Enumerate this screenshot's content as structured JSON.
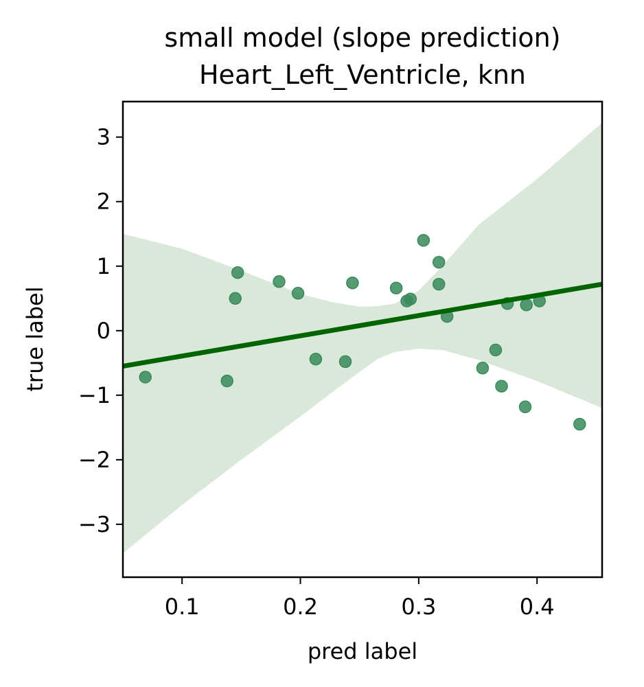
{
  "chart_data": {
    "type": "scatter",
    "title_line1": "small model (slope prediction)",
    "title_line2": "Heart_Left_Ventricle, knn",
    "xlabel": "pred label",
    "ylabel": "true label",
    "xlim": [
      0.05,
      0.455
    ],
    "ylim": [
      -3.82,
      3.55
    ],
    "xticks": [
      0.1,
      0.2,
      0.3,
      0.4
    ],
    "xtick_labels": [
      "0.1",
      "0.2",
      "0.3",
      "0.4"
    ],
    "yticks": [
      -3,
      -2,
      -1,
      0,
      1,
      2,
      3
    ],
    "ytick_labels": [
      "−3",
      "−2",
      "−1",
      "0",
      "1",
      "2",
      "3"
    ],
    "grid": false,
    "point_color": "#3a8a5a",
    "line_color": "#006400",
    "band_color": "#d9e8d9",
    "points": [
      {
        "x": 0.069,
        "y": -0.72
      },
      {
        "x": 0.138,
        "y": -0.78
      },
      {
        "x": 0.145,
        "y": 0.5
      },
      {
        "x": 0.147,
        "y": 0.9
      },
      {
        "x": 0.182,
        "y": 0.76
      },
      {
        "x": 0.198,
        "y": 0.58
      },
      {
        "x": 0.213,
        "y": -0.44
      },
      {
        "x": 0.238,
        "y": -0.48
      },
      {
        "x": 0.244,
        "y": 0.74
      },
      {
        "x": 0.281,
        "y": 0.66
      },
      {
        "x": 0.29,
        "y": 0.46
      },
      {
        "x": 0.293,
        "y": 0.49
      },
      {
        "x": 0.304,
        "y": 1.4
      },
      {
        "x": 0.317,
        "y": 1.06
      },
      {
        "x": 0.317,
        "y": 0.72
      },
      {
        "x": 0.324,
        "y": 0.22
      },
      {
        "x": 0.354,
        "y": -0.58
      },
      {
        "x": 0.365,
        "y": -0.3
      },
      {
        "x": 0.37,
        "y": -0.86
      },
      {
        "x": 0.375,
        "y": 0.42
      },
      {
        "x": 0.39,
        "y": -1.18
      },
      {
        "x": 0.391,
        "y": 0.4
      },
      {
        "x": 0.402,
        "y": 0.46
      },
      {
        "x": 0.436,
        "y": -1.45
      }
    ],
    "regression_line": {
      "x": [
        0.05,
        0.455
      ],
      "y": [
        -0.55,
        0.72
      ]
    },
    "confidence_band": {
      "x": [
        0.05,
        0.1,
        0.15,
        0.2,
        0.225,
        0.25,
        0.265,
        0.28,
        0.3,
        0.32,
        0.35,
        0.4,
        0.455
      ],
      "upper": [
        1.5,
        1.27,
        0.93,
        0.57,
        0.45,
        0.37,
        0.38,
        0.42,
        0.62,
        1.0,
        1.63,
        2.35,
        3.22
      ],
      "lower": [
        -3.45,
        -2.7,
        -2.0,
        -1.33,
        -0.98,
        -0.64,
        -0.44,
        -0.33,
        -0.28,
        -0.3,
        -0.45,
        -0.78,
        -1.2
      ]
    }
  }
}
